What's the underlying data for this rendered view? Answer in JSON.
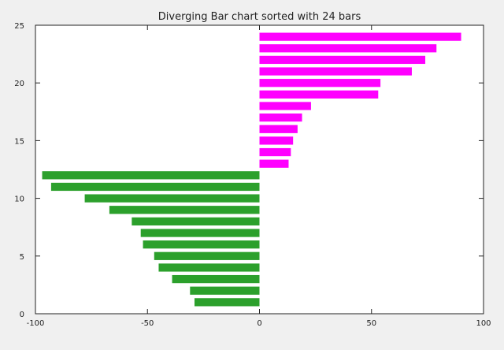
{
  "chart_data": {
    "type": "bar",
    "orientation": "horizontal",
    "title": "Diverging Bar chart sorted with 24 bars",
    "xlabel": "",
    "ylabel": "",
    "xlim": [
      -100,
      100
    ],
    "ylim": [
      0,
      25
    ],
    "x_ticks": [
      -100,
      -50,
      0,
      50,
      100
    ],
    "y_ticks": [
      0,
      5,
      10,
      15,
      20,
      25
    ],
    "grid": false,
    "legend": "none",
    "colors": {
      "positive": "#ff00ff",
      "negative": "#2ca02c",
      "background": "#f0f0f0",
      "axes_bg": "#ffffff"
    },
    "bars": [
      {
        "y": 1,
        "value": -29
      },
      {
        "y": 2,
        "value": -31
      },
      {
        "y": 3,
        "value": -39
      },
      {
        "y": 4,
        "value": -45
      },
      {
        "y": 5,
        "value": -47
      },
      {
        "y": 6,
        "value": -52
      },
      {
        "y": 7,
        "value": -53
      },
      {
        "y": 8,
        "value": -57
      },
      {
        "y": 9,
        "value": -67
      },
      {
        "y": 10,
        "value": -78
      },
      {
        "y": 11,
        "value": -93
      },
      {
        "y": 12,
        "value": -97
      },
      {
        "y": 13,
        "value": 13
      },
      {
        "y": 14,
        "value": 14
      },
      {
        "y": 15,
        "value": 15
      },
      {
        "y": 16,
        "value": 17
      },
      {
        "y": 17,
        "value": 19
      },
      {
        "y": 18,
        "value": 23
      },
      {
        "y": 19,
        "value": 53
      },
      {
        "y": 20,
        "value": 54
      },
      {
        "y": 21,
        "value": 68
      },
      {
        "y": 22,
        "value": 74
      },
      {
        "y": 23,
        "value": 79
      },
      {
        "y": 24,
        "value": 90
      }
    ]
  }
}
